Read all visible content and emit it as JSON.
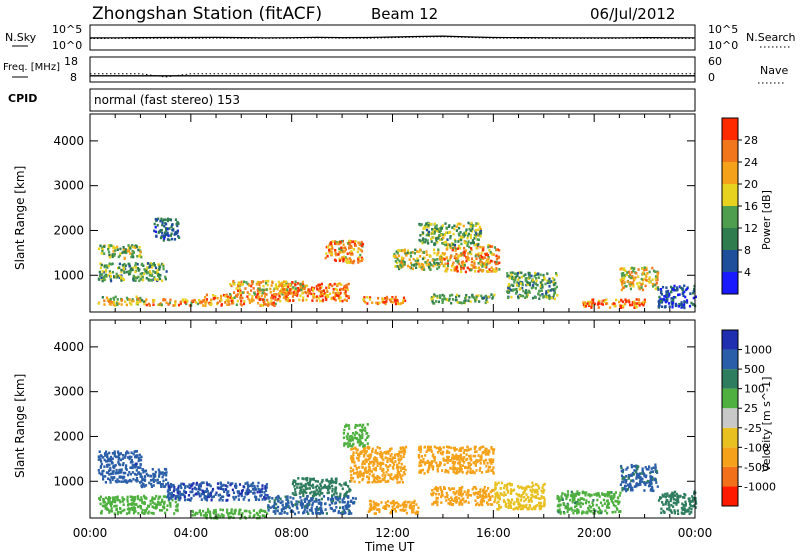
{
  "header": {
    "title": "Zhongshan Station (fitACF)",
    "beam": "Beam 12",
    "date": "06/Jul/2012"
  },
  "colors": {
    "power": [
      "#1a1aff",
      "#1f4e9b",
      "#2f7d4e",
      "#4f9e4f",
      "#e7d21f",
      "#f5a21a",
      "#f2761c",
      "#ff2a00"
    ],
    "velocity": [
      "#1f2fb0",
      "#2a5ea8",
      "#2f7d5f",
      "#4fb040",
      "#c8c8c8",
      "#e8c020",
      "#f5a21a",
      "#f2701a",
      "#ff1a00"
    ]
  },
  "chart_data": [
    {
      "type": "line",
      "panel": "nsky-nsearch",
      "series": [
        {
          "name": "N.Sky",
          "values": [
            260,
            270,
            300,
            320,
            310,
            330,
            300,
            280,
            290,
            350,
            300,
            310,
            400,
            500,
            600,
            420,
            310,
            300,
            290,
            280,
            270,
            280,
            300,
            290,
            280
          ]
        },
        {
          "name": "N.Search",
          "values": [
            200,
            210,
            220,
            230,
            220,
            240,
            230,
            220,
            230,
            260,
            240,
            230,
            300,
            380,
            450,
            330,
            240,
            230,
            220,
            210,
            210,
            220,
            230,
            220,
            210
          ]
        }
      ],
      "x": [
        "00",
        "01",
        "02",
        "03",
        "04",
        "05",
        "06",
        "07",
        "08",
        "09",
        "10",
        "11",
        "12",
        "13",
        "14",
        "15",
        "16",
        "17",
        "18",
        "19",
        "20",
        "21",
        "22",
        "23",
        "24"
      ],
      "left_axis": {
        "label": "N.Sky",
        "ticks": [
          "10^5",
          "10^0"
        ]
      },
      "right_axis": {
        "label": "N.Search",
        "ticks": [
          "10^5",
          "10^0"
        ]
      }
    },
    {
      "type": "line",
      "panel": "freq-nave",
      "left_axis": {
        "label": "Freq. [MHz]",
        "ticks": [
          "18",
          "8"
        ]
      },
      "right_axis": {
        "label": "Nave",
        "ticks": [
          "60",
          "0"
        ]
      },
      "series": [
        {
          "name": "Freq.",
          "values": [
            10.5,
            10.5,
            10.5,
            10.5,
            10.5,
            10.5,
            10.5,
            10.5,
            10.5,
            10.5,
            10.5,
            10.5,
            10.5,
            10.5,
            10.5,
            10.5,
            10.5,
            10.5,
            10.5,
            10.5,
            10.5,
            10.5,
            10.5,
            10.5,
            10.5
          ]
        },
        {
          "name": "Nave",
          "values": [
            20,
            20,
            20,
            12,
            20,
            20,
            20,
            20,
            20,
            20,
            20,
            20,
            20,
            20,
            20,
            20,
            20,
            20,
            20,
            20,
            20,
            20,
            20,
            20,
            20
          ]
        }
      ]
    },
    {
      "type": "table",
      "panel": "cpid",
      "label": "CPID",
      "value": "normal (fast stereo) 153"
    },
    {
      "type": "heatmap",
      "panel": "power",
      "ylabel": "Slant Range [km]",
      "xlabel": "Time UT",
      "ylim": [
        180,
        4600
      ],
      "xlim": [
        0,
        24
      ],
      "y_ticks": [
        "1000",
        "2000",
        "3000",
        "4000"
      ],
      "x_ticks": [
        "00:00",
        "04:00",
        "08:00",
        "12:00",
        "16:00",
        "20:00",
        "00:00"
      ],
      "colorbar": {
        "label": "Power [dB]",
        "ticks": [
          "28",
          "24",
          "20",
          "16",
          "12",
          "8",
          "4"
        ],
        "range": [
          0,
          30
        ]
      },
      "blobs": [
        {
          "t0": 0.3,
          "t1": 2.2,
          "r0": 350,
          "r1": 550,
          "v": 18
        },
        {
          "t0": 2.2,
          "t1": 4.5,
          "r0": 350,
          "r1": 500,
          "v": 22
        },
        {
          "t0": 4.5,
          "t1": 7.5,
          "r0": 350,
          "r1": 600,
          "v": 24
        },
        {
          "t0": 7.5,
          "t1": 10.3,
          "r0": 450,
          "r1": 850,
          "v": 26
        },
        {
          "t0": 5.5,
          "t1": 8.5,
          "r0": 600,
          "r1": 900,
          "v": 21
        },
        {
          "t0": 0.3,
          "t1": 3.0,
          "r0": 900,
          "r1": 1300,
          "v": 13
        },
        {
          "t0": 0.3,
          "t1": 2.0,
          "r0": 1400,
          "r1": 1700,
          "v": 15
        },
        {
          "t0": 9.3,
          "t1": 10.8,
          "r0": 1300,
          "r1": 1800,
          "v": 24
        },
        {
          "t0": 10.8,
          "t1": 12.5,
          "r0": 380,
          "r1": 550,
          "v": 26
        },
        {
          "t0": 12.0,
          "t1": 14.0,
          "r0": 1150,
          "r1": 1600,
          "v": 17
        },
        {
          "t0": 14.0,
          "t1": 16.2,
          "r0": 1100,
          "r1": 1700,
          "v": 22
        },
        {
          "t0": 13.5,
          "t1": 16.0,
          "r0": 400,
          "r1": 600,
          "v": 14
        },
        {
          "t0": 16.5,
          "t1": 18.5,
          "r0": 500,
          "r1": 1100,
          "v": 12
        },
        {
          "t0": 19.5,
          "t1": 22.0,
          "r0": 300,
          "r1": 500,
          "v": 26
        },
        {
          "t0": 21.0,
          "t1": 22.5,
          "r0": 700,
          "r1": 1200,
          "v": 20
        },
        {
          "t0": 2.5,
          "t1": 3.5,
          "r0": 1800,
          "r1": 2300,
          "v": 7
        },
        {
          "t0": 13.0,
          "t1": 15.5,
          "r0": 1700,
          "r1": 2200,
          "v": 14
        },
        {
          "t0": 22.5,
          "t1": 24.0,
          "r0": 300,
          "r1": 800,
          "v": 6
        }
      ]
    },
    {
      "type": "heatmap",
      "panel": "velocity",
      "ylabel": "Slant Range [km]",
      "xlabel": "Time UT",
      "ylim": [
        180,
        4600
      ],
      "xlim": [
        0,
        24
      ],
      "y_ticks": [
        "1000",
        "2000",
        "3000",
        "4000"
      ],
      "x_ticks": [
        "00:00",
        "04:00",
        "08:00",
        "12:00",
        "16:00",
        "20:00",
        "00:00"
      ],
      "colorbar": {
        "label": "Velocity [m s^-1]",
        "ticks": [
          "1000",
          "500",
          "100",
          "25",
          "-25",
          "-100",
          "-500",
          "-1000"
        ]
      },
      "blobs": [
        {
          "t0": 0.3,
          "t1": 3.5,
          "r0": 300,
          "r1": 700,
          "v": 40
        },
        {
          "t0": 0.3,
          "t1": 2.0,
          "r0": 1000,
          "r1": 1700,
          "v": 800
        },
        {
          "t0": 2.0,
          "t1": 3.0,
          "r0": 900,
          "r1": 1300,
          "v": 700
        },
        {
          "t0": 3.0,
          "t1": 7.0,
          "r0": 600,
          "r1": 1000,
          "v": 900
        },
        {
          "t0": 7.0,
          "t1": 10.5,
          "r0": 300,
          "r1": 700,
          "v": 600
        },
        {
          "t0": 8.0,
          "t1": 10.3,
          "r0": 700,
          "r1": 1100,
          "v": 300
        },
        {
          "t0": 4.0,
          "t1": 7.0,
          "r0": 200,
          "r1": 400,
          "v": 60
        },
        {
          "t0": 10.3,
          "t1": 12.5,
          "r0": 1000,
          "r1": 1800,
          "v": -300
        },
        {
          "t0": 11.0,
          "t1": 13.0,
          "r0": 300,
          "r1": 600,
          "v": -200
        },
        {
          "t0": 13.0,
          "t1": 16.0,
          "r0": 1200,
          "r1": 1800,
          "v": -250
        },
        {
          "t0": 13.5,
          "t1": 16.0,
          "r0": 500,
          "r1": 900,
          "v": -150
        },
        {
          "t0": 16.0,
          "t1": 18.0,
          "r0": 400,
          "r1": 1000,
          "v": -60
        },
        {
          "t0": 18.5,
          "t1": 21.0,
          "r0": 300,
          "r1": 800,
          "v": 80
        },
        {
          "t0": 21.0,
          "t1": 22.5,
          "r0": 800,
          "r1": 1400,
          "v": 600
        },
        {
          "t0": 22.5,
          "t1": 24.0,
          "r0": 300,
          "r1": 800,
          "v": 200
        },
        {
          "t0": 10.0,
          "t1": 11.0,
          "r0": 1800,
          "r1": 2300,
          "v": 60
        }
      ]
    }
  ]
}
